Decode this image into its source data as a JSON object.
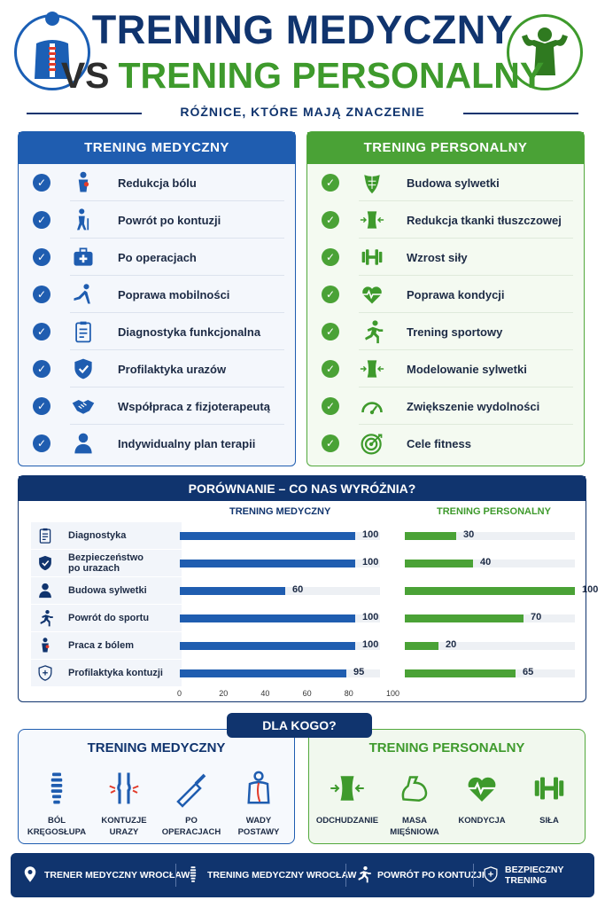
{
  "header": {
    "title_line1": "TRENING MEDYCZNY",
    "title_vs": "VS",
    "title_line2": "TRENING PERSONALNY",
    "subtitle": "RÓŻNICE, KTÓRE MAJĄ ZNACZENIE"
  },
  "medical_panel": {
    "title": "TRENING MEDYCZNY",
    "items": [
      {
        "label": "Redukcja bólu",
        "icon": "pain-back-icon"
      },
      {
        "label": "Powrót po kontuzji",
        "icon": "walking-cane-icon"
      },
      {
        "label": "Po operacjach",
        "icon": "medical-kit-icon"
      },
      {
        "label": "Poprawa mobilności",
        "icon": "stretching-icon"
      },
      {
        "label": "Diagnostyka funkcjonalna",
        "icon": "clipboard-icon"
      },
      {
        "label": "Profilaktyka urazów",
        "icon": "shield-check-icon"
      },
      {
        "label": "Współpraca z fizjoterapeutą",
        "icon": "handshake-icon"
      },
      {
        "label": "Indywidualny plan terapii",
        "icon": "person-icon"
      }
    ]
  },
  "personal_panel": {
    "title": "TRENING PERSONALNY",
    "items": [
      {
        "label": "Budowa sylwetki",
        "icon": "torso-icon"
      },
      {
        "label": "Redukcja tkanki tłuszczowej",
        "icon": "waist-icon"
      },
      {
        "label": "Wzrost siły",
        "icon": "dumbbell-icon"
      },
      {
        "label": "Poprawa kondycji",
        "icon": "heart-pulse-icon"
      },
      {
        "label": "Trening sportowy",
        "icon": "runner-icon"
      },
      {
        "label": "Modelowanie sylwetki",
        "icon": "waist-icon"
      },
      {
        "label": "Zwiększenie wydolności",
        "icon": "gauge-icon"
      },
      {
        "label": "Cele fitness",
        "icon": "target-icon"
      }
    ]
  },
  "comparison": {
    "title": "PORÓWNANIE – CO NAS WYRÓŻNIA?",
    "col_medical": "TRENING MEDYCZNY",
    "col_personal": "TRENING PERSONALNY",
    "axis_ticks": [
      "0",
      "20",
      "40",
      "60",
      "80",
      "100"
    ],
    "colors": {
      "medical": "#1f5db0",
      "personal": "#4aa236"
    }
  },
  "chart_data": {
    "type": "bar",
    "categories": [
      "Diagnostyka",
      "Bezpieczeństwo po urazach",
      "Budowa sylwetki",
      "Powrót do sportu",
      "Praca z bólem",
      "Profilaktyka kontuzji"
    ],
    "category_lines": [
      [
        "Diagnostyka"
      ],
      [
        "Bezpieczeństwo",
        "po urazach"
      ],
      [
        "Budowa sylwetki"
      ],
      [
        "Powrót do sportu"
      ],
      [
        "Praca z bólem"
      ],
      [
        "Profilaktyka kontuzji"
      ]
    ],
    "series": [
      {
        "name": "TRENING MEDYCZNY",
        "values": [
          100,
          100,
          60,
          100,
          100,
          95
        ]
      },
      {
        "name": "TRENING PERSONALNY",
        "values": [
          30,
          40,
          100,
          70,
          20,
          65
        ]
      }
    ],
    "xlim": [
      0,
      100
    ]
  },
  "dla_kogo": {
    "label": "DLA KOGO?",
    "medical": {
      "title": "TRENING MEDYCZNY",
      "items": [
        {
          "line1": "BÓL",
          "line2": "KRĘGOSŁUPA",
          "icon": "spine-icon"
        },
        {
          "line1": "KONTUZJE",
          "line2": "URAZY",
          "icon": "knee-joint-icon"
        },
        {
          "line1": "PO",
          "line2": "OPERACJACH",
          "icon": "scalpel-icon"
        },
        {
          "line1": "WADY",
          "line2": "POSTAWY",
          "icon": "posture-icon"
        }
      ]
    },
    "personal": {
      "title": "TRENING PERSONALNY",
      "items": [
        {
          "line1": "ODCHUDZANIE",
          "line2": "",
          "icon": "waist-icon"
        },
        {
          "line1": "MASA",
          "line2": "MIĘŚNIOWA",
          "icon": "bicep-icon"
        },
        {
          "line1": "KONDYCJA",
          "line2": "",
          "icon": "heart-pulse-icon"
        },
        {
          "line1": "SIŁA",
          "line2": "",
          "icon": "dumbbell-icon"
        }
      ]
    }
  },
  "footer": {
    "items": [
      {
        "label": "TRENER MEDYCZNY WROCŁAW",
        "icon": "location-pin-icon"
      },
      {
        "label": "TRENING MEDYCZNY WROCŁAW",
        "icon": "spine-icon"
      },
      {
        "label": "POWRÓT PO KONTUZJI",
        "icon": "runner-icon"
      },
      {
        "label": "BEZPIECZNY TRENING",
        "icon": "shield-plus-icon"
      }
    ]
  }
}
